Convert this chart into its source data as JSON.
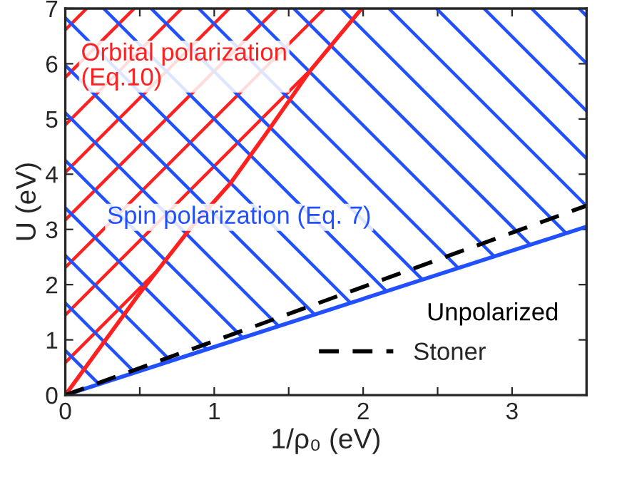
{
  "chart_data": {
    "type": "line",
    "xlabel": "1/ρ₀ (eV)",
    "ylabel": "U (eV)",
    "xlim": [
      0,
      3.5
    ],
    "ylim": [
      0,
      7
    ],
    "xticks": [
      0,
      {
        "value": 0.5,
        "label": null
      },
      1,
      {
        "value": 1.5,
        "label": null
      },
      2,
      {
        "value": 2.5,
        "label": null
      },
      3
    ],
    "yticks": [
      0,
      1,
      2,
      3,
      4,
      5,
      6,
      7
    ],
    "series": [
      {
        "color": "#ff2020",
        "x": [
          0,
          0.49,
          0.84,
          1.11,
          1.35,
          1.64,
          1.99
        ],
        "values": [
          0,
          1.81,
          3.02,
          3.84,
          4.74,
          5.86,
          7.0
        ],
        "lower": [
          0,
          1.81,
          3.02,
          3.84,
          4.74,
          5.86,
          7.0
        ],
        "upper": [
          7,
          7,
          7,
          7,
          7,
          7,
          7
        ]
      },
      {
        "color": "#2050ff",
        "x": [
          0,
          3.5
        ],
        "values": [
          0,
          3.05
        ],
        "lower": [
          0,
          3.05
        ],
        "upper": [
          7,
          7
        ]
      },
      {
        "name": "Stoner",
        "color": "#000000",
        "line_style": "dashed",
        "x": [
          0,
          3.5
        ],
        "values": [
          0,
          3.43
        ]
      }
    ],
    "annotations": [
      "Orbital polarization\n(Eq.10)",
      "Spin polarization (Eq. 7)",
      "Unpolarized"
    ],
    "legend": "bottom right"
  }
}
